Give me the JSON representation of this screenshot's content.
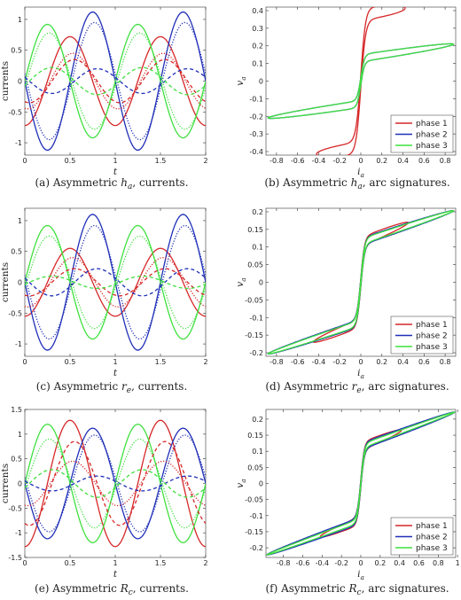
{
  "figure": {
    "colors": {
      "phase1": "#d62728",
      "phase2": "#1f2fb8",
      "phase3": "#3fe03f"
    }
  },
  "chart_data": [
    {
      "id": "a",
      "type": "line",
      "caption": "(a) Asymmetric h_a, currents.",
      "caption_parts": {
        "prefix": "(a) Asymmetric ",
        "sym": "h",
        "sub": "a",
        "suffix": ", currents."
      },
      "xlabel": "t",
      "ylabel": "currents",
      "xlim": [
        0,
        2
      ],
      "ylim": [
        -1.2,
        1.2
      ],
      "xticks": [
        "0",
        "0.5",
        "1",
        "1.5",
        "2"
      ],
      "yticks": [
        "-1",
        "-0.5",
        "0",
        "0.5",
        "1"
      ],
      "ytick_values": [
        -1,
        -0.5,
        0,
        0.5,
        1
      ],
      "series": [
        {
          "color": "phase1",
          "style": "solid",
          "amp": 0.72,
          "phase": 0.25
        },
        {
          "color": "phase2",
          "style": "solid",
          "amp": 1.12,
          "phase": 0.5
        },
        {
          "color": "phase3",
          "style": "solid",
          "amp": 0.92,
          "phase": 0.0
        },
        {
          "color": "phase1",
          "style": "dotted",
          "amp": 0.45,
          "phase": 0.28
        },
        {
          "color": "phase2",
          "style": "dotted",
          "amp": 0.95,
          "phase": 0.52
        },
        {
          "color": "phase3",
          "style": "dotted",
          "amp": 0.78,
          "phase": 0.02
        },
        {
          "color": "phase1",
          "style": "dashed",
          "amp": 0.35,
          "phase": 0.3
        },
        {
          "color": "phase2",
          "style": "dashed",
          "amp": 0.2,
          "phase": 0.55
        },
        {
          "color": "phase3",
          "style": "dashed",
          "amp": 0.22,
          "phase": 0.05
        }
      ]
    },
    {
      "id": "b",
      "type": "line",
      "caption": "(b) Asymmetric h_a, arc signatures.",
      "caption_parts": {
        "prefix": "(b) Asymmetric ",
        "sym": "h",
        "sub": "a",
        "suffix": ", arc signatures."
      },
      "xlabel": "i_a",
      "ylabel": "v_a",
      "xlim": [
        -0.9,
        0.9
      ],
      "ylim": [
        -0.42,
        0.42
      ],
      "xticks": [
        "-0.8",
        "-0.6",
        "-0.4",
        "-0.2",
        "0",
        "0.2",
        "0.4",
        "0.6",
        "0.8"
      ],
      "xtick_values": [
        -0.8,
        -0.6,
        -0.4,
        -0.2,
        0,
        0.2,
        0.4,
        0.6,
        0.8
      ],
      "yticks": [
        "-0.4",
        "-0.3",
        "-0.2",
        "-0.1",
        "0",
        "0.1",
        "0.2",
        "0.3",
        "0.4"
      ],
      "ytick_values": [
        -0.4,
        -0.3,
        -0.2,
        -0.1,
        0,
        0.1,
        0.2,
        0.3,
        0.4
      ],
      "legend": [
        "phase 1",
        "phase 2",
        "phase 3"
      ],
      "legend_position": "bottom-right",
      "series": [
        {
          "name": "phase 1",
          "color": "phase1",
          "amp": 0.42,
          "plateau": 0.38,
          "slope": 0.08,
          "k": 22,
          "loop": 0.035
        },
        {
          "name": "phase 2",
          "color": "phase2",
          "amp": 0.88,
          "plateau": 0.13,
          "slope": 0.09,
          "k": 30,
          "loop": 0.02
        },
        {
          "name": "phase 3",
          "color": "phase3",
          "amp": 0.88,
          "plateau": 0.13,
          "slope": 0.09,
          "k": 30,
          "loop": 0.02
        }
      ]
    },
    {
      "id": "c",
      "type": "line",
      "caption": "(c) Asymmetric r_e, currents.",
      "caption_parts": {
        "prefix": "(c) Asymmetric ",
        "sym": "r",
        "sub": "e",
        "suffix": ", currents."
      },
      "xlabel": "t",
      "ylabel": "currents",
      "xlim": [
        0,
        2
      ],
      "ylim": [
        -1.2,
        1.2
      ],
      "xticks": [
        "0",
        "0.5",
        "1",
        "1.5",
        "2"
      ],
      "yticks": [
        "-1",
        "-0.5",
        "0",
        "0.5",
        "1"
      ],
      "ytick_values": [
        -1,
        -0.5,
        0,
        0.5,
        1
      ],
      "series": [
        {
          "color": "phase1",
          "style": "solid",
          "amp": 0.55,
          "phase": 0.25
        },
        {
          "color": "phase2",
          "style": "solid",
          "amp": 1.1,
          "phase": 0.5
        },
        {
          "color": "phase3",
          "style": "solid",
          "amp": 0.92,
          "phase": 0.0
        },
        {
          "color": "phase1",
          "style": "dotted",
          "amp": 0.4,
          "phase": 0.28
        },
        {
          "color": "phase2",
          "style": "dotted",
          "amp": 0.92,
          "phase": 0.52
        },
        {
          "color": "phase3",
          "style": "dotted",
          "amp": 0.75,
          "phase": 0.02
        },
        {
          "color": "phase1",
          "style": "dashed",
          "amp": 0.22,
          "phase": 0.3
        },
        {
          "color": "phase2",
          "style": "dashed",
          "amp": 0.22,
          "phase": 0.55
        },
        {
          "color": "phase3",
          "style": "dashed",
          "amp": 0.1,
          "phase": 0.05
        }
      ]
    },
    {
      "id": "d",
      "type": "line",
      "caption": "(d) Asymmetric r_e, arc signatures.",
      "caption_parts": {
        "prefix": "(d) Asymmetric ",
        "sym": "r",
        "sub": "e",
        "suffix": ", arc signatures."
      },
      "xlabel": "i_a",
      "ylabel": "v_a",
      "xlim": [
        -0.9,
        0.9
      ],
      "ylim": [
        -0.21,
        0.21
      ],
      "xticks": [
        "-0.8",
        "-0.6",
        "-0.4",
        "-0.2",
        "0",
        "0.2",
        "0.4",
        "0.6",
        "0.8"
      ],
      "xtick_values": [
        -0.8,
        -0.6,
        -0.4,
        -0.2,
        0,
        0.2,
        0.4,
        0.6,
        0.8
      ],
      "yticks": [
        "-0.2",
        "-0.15",
        "-0.1",
        "-0.05",
        "0",
        "0.05",
        "0.1",
        "0.15",
        "0.2"
      ],
      "ytick_values": [
        -0.2,
        -0.15,
        -0.1,
        -0.05,
        0,
        0.05,
        0.1,
        0.15,
        0.2
      ],
      "legend": [
        "phase 1",
        "phase 2",
        "phase 3"
      ],
      "legend_position": "bottom-right",
      "series": [
        {
          "name": "phase 1",
          "color": "phase1",
          "amp": 0.45,
          "plateau": 0.115,
          "slope": 0.12,
          "k": 28,
          "loop": 0.012
        },
        {
          "name": "phase 2",
          "color": "phase2",
          "amp": 0.88,
          "plateau": 0.115,
          "slope": 0.1,
          "k": 28,
          "loop": 0.01
        },
        {
          "name": "phase 3",
          "color": "phase3",
          "amp": 0.88,
          "plateau": 0.115,
          "slope": 0.1,
          "k": 28,
          "loop": 0.008
        }
      ]
    },
    {
      "id": "e",
      "type": "line",
      "caption": "(e) Asymmetric R_c, currents.",
      "caption_parts": {
        "prefix": "(e) Asymmetric ",
        "sym": "R",
        "sub": "c",
        "suffix": ", currents."
      },
      "xlabel": "t",
      "ylabel": "currents",
      "xlim": [
        0,
        2
      ],
      "ylim": [
        -1.5,
        1.5
      ],
      "xticks": [
        "0",
        "0.5",
        "1",
        "1.5",
        "2"
      ],
      "yticks": [
        "-1.5",
        "-1",
        "-0.5",
        "0",
        "0.5",
        "1",
        "1.5"
      ],
      "ytick_values": [
        -1.5,
        -1,
        -0.5,
        0,
        0.5,
        1,
        1.5
      ],
      "series": [
        {
          "color": "phase1",
          "style": "solid",
          "amp": 1.28,
          "phase": 0.25
        },
        {
          "color": "phase2",
          "style": "solid",
          "amp": 1.12,
          "phase": 0.5
        },
        {
          "color": "phase3",
          "style": "solid",
          "amp": 1.2,
          "phase": 0.0
        },
        {
          "color": "phase1",
          "style": "dotted",
          "amp": 0.45,
          "phase": 0.28
        },
        {
          "color": "phase2",
          "style": "dotted",
          "amp": 0.98,
          "phase": 0.52
        },
        {
          "color": "phase3",
          "style": "dotted",
          "amp": 0.9,
          "phase": 0.02
        },
        {
          "color": "phase1",
          "style": "dashed",
          "amp": 0.85,
          "phase": 0.3
        },
        {
          "color": "phase2",
          "style": "dashed",
          "amp": 0.15,
          "phase": 0.55
        },
        {
          "color": "phase3",
          "style": "dashed",
          "amp": 0.28,
          "phase": 0.05
        }
      ]
    },
    {
      "id": "f",
      "type": "line",
      "caption": "(f) Asymmetric R_c, arc signatures.",
      "caption_parts": {
        "prefix": "(f) Asymmetric ",
        "sym": "R",
        "sub": "c",
        "suffix": ", arc signatures."
      },
      "xlabel": "i_a",
      "ylabel": "v_a",
      "xlim": [
        -0.98,
        0.98
      ],
      "ylim": [
        -0.23,
        0.23
      ],
      "xticks": [
        "-0.8",
        "-0.6",
        "-0.4",
        "-0.2",
        "0",
        "0.2",
        "0.4",
        "0.6",
        "0.8",
        "1"
      ],
      "xtick_values": [
        -0.8,
        -0.6,
        -0.4,
        -0.2,
        0,
        0.2,
        0.4,
        0.6,
        0.8,
        1
      ],
      "yticks": [
        "-0.2",
        "-0.15",
        "-0.1",
        "-0.05",
        "0",
        "0.05",
        "0.1",
        "0.15",
        "0.2"
      ],
      "ytick_values": [
        -0.2,
        -0.15,
        -0.1,
        -0.05,
        0,
        0.05,
        0.1,
        0.15,
        0.2
      ],
      "legend": [
        "phase 1",
        "phase 2",
        "phase 3"
      ],
      "legend_position": "bottom-right",
      "series": [
        {
          "name": "phase 1",
          "color": "phase1",
          "amp": 0.42,
          "plateau": 0.115,
          "slope": 0.12,
          "k": 28,
          "loop": 0.012
        },
        {
          "name": "phase 2",
          "color": "phase2",
          "amp": 0.97,
          "plateau": 0.115,
          "slope": 0.11,
          "k": 28,
          "loop": 0.01
        },
        {
          "name": "phase 3",
          "color": "phase3",
          "amp": 0.97,
          "plateau": 0.115,
          "slope": 0.11,
          "k": 28,
          "loop": 0.006
        }
      ]
    }
  ]
}
